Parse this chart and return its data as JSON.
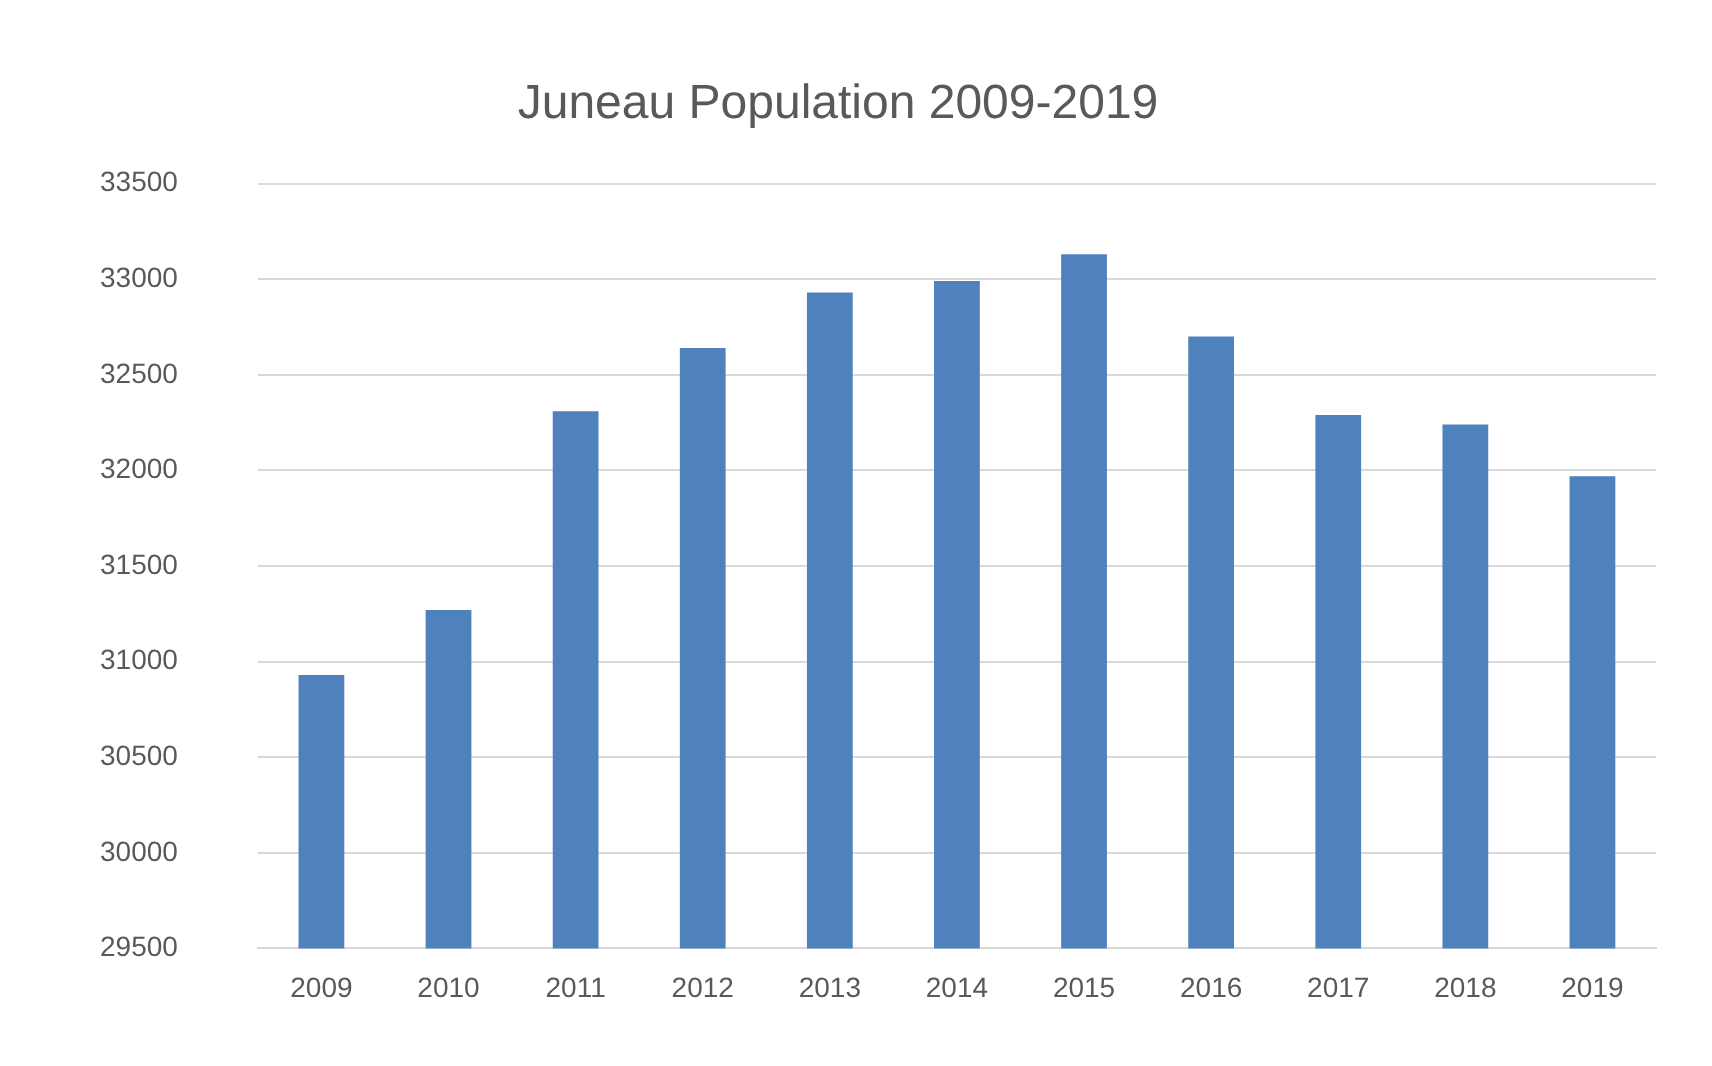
{
  "chart_data": {
    "type": "bar",
    "title": "Juneau Population 2009-2019",
    "categories": [
      "2009",
      "2010",
      "2011",
      "2012",
      "2013",
      "2014",
      "2015",
      "2016",
      "2017",
      "2018",
      "2019"
    ],
    "values": [
      30930,
      31270,
      32310,
      32640,
      32930,
      32990,
      33130,
      32700,
      32290,
      32240,
      31970
    ],
    "color": "#4f81bd",
    "ylim": [
      29500,
      33500
    ],
    "yticks": [
      29500,
      30000,
      30500,
      31000,
      31500,
      32000,
      32500,
      33000,
      33500
    ],
    "grid": "y"
  }
}
